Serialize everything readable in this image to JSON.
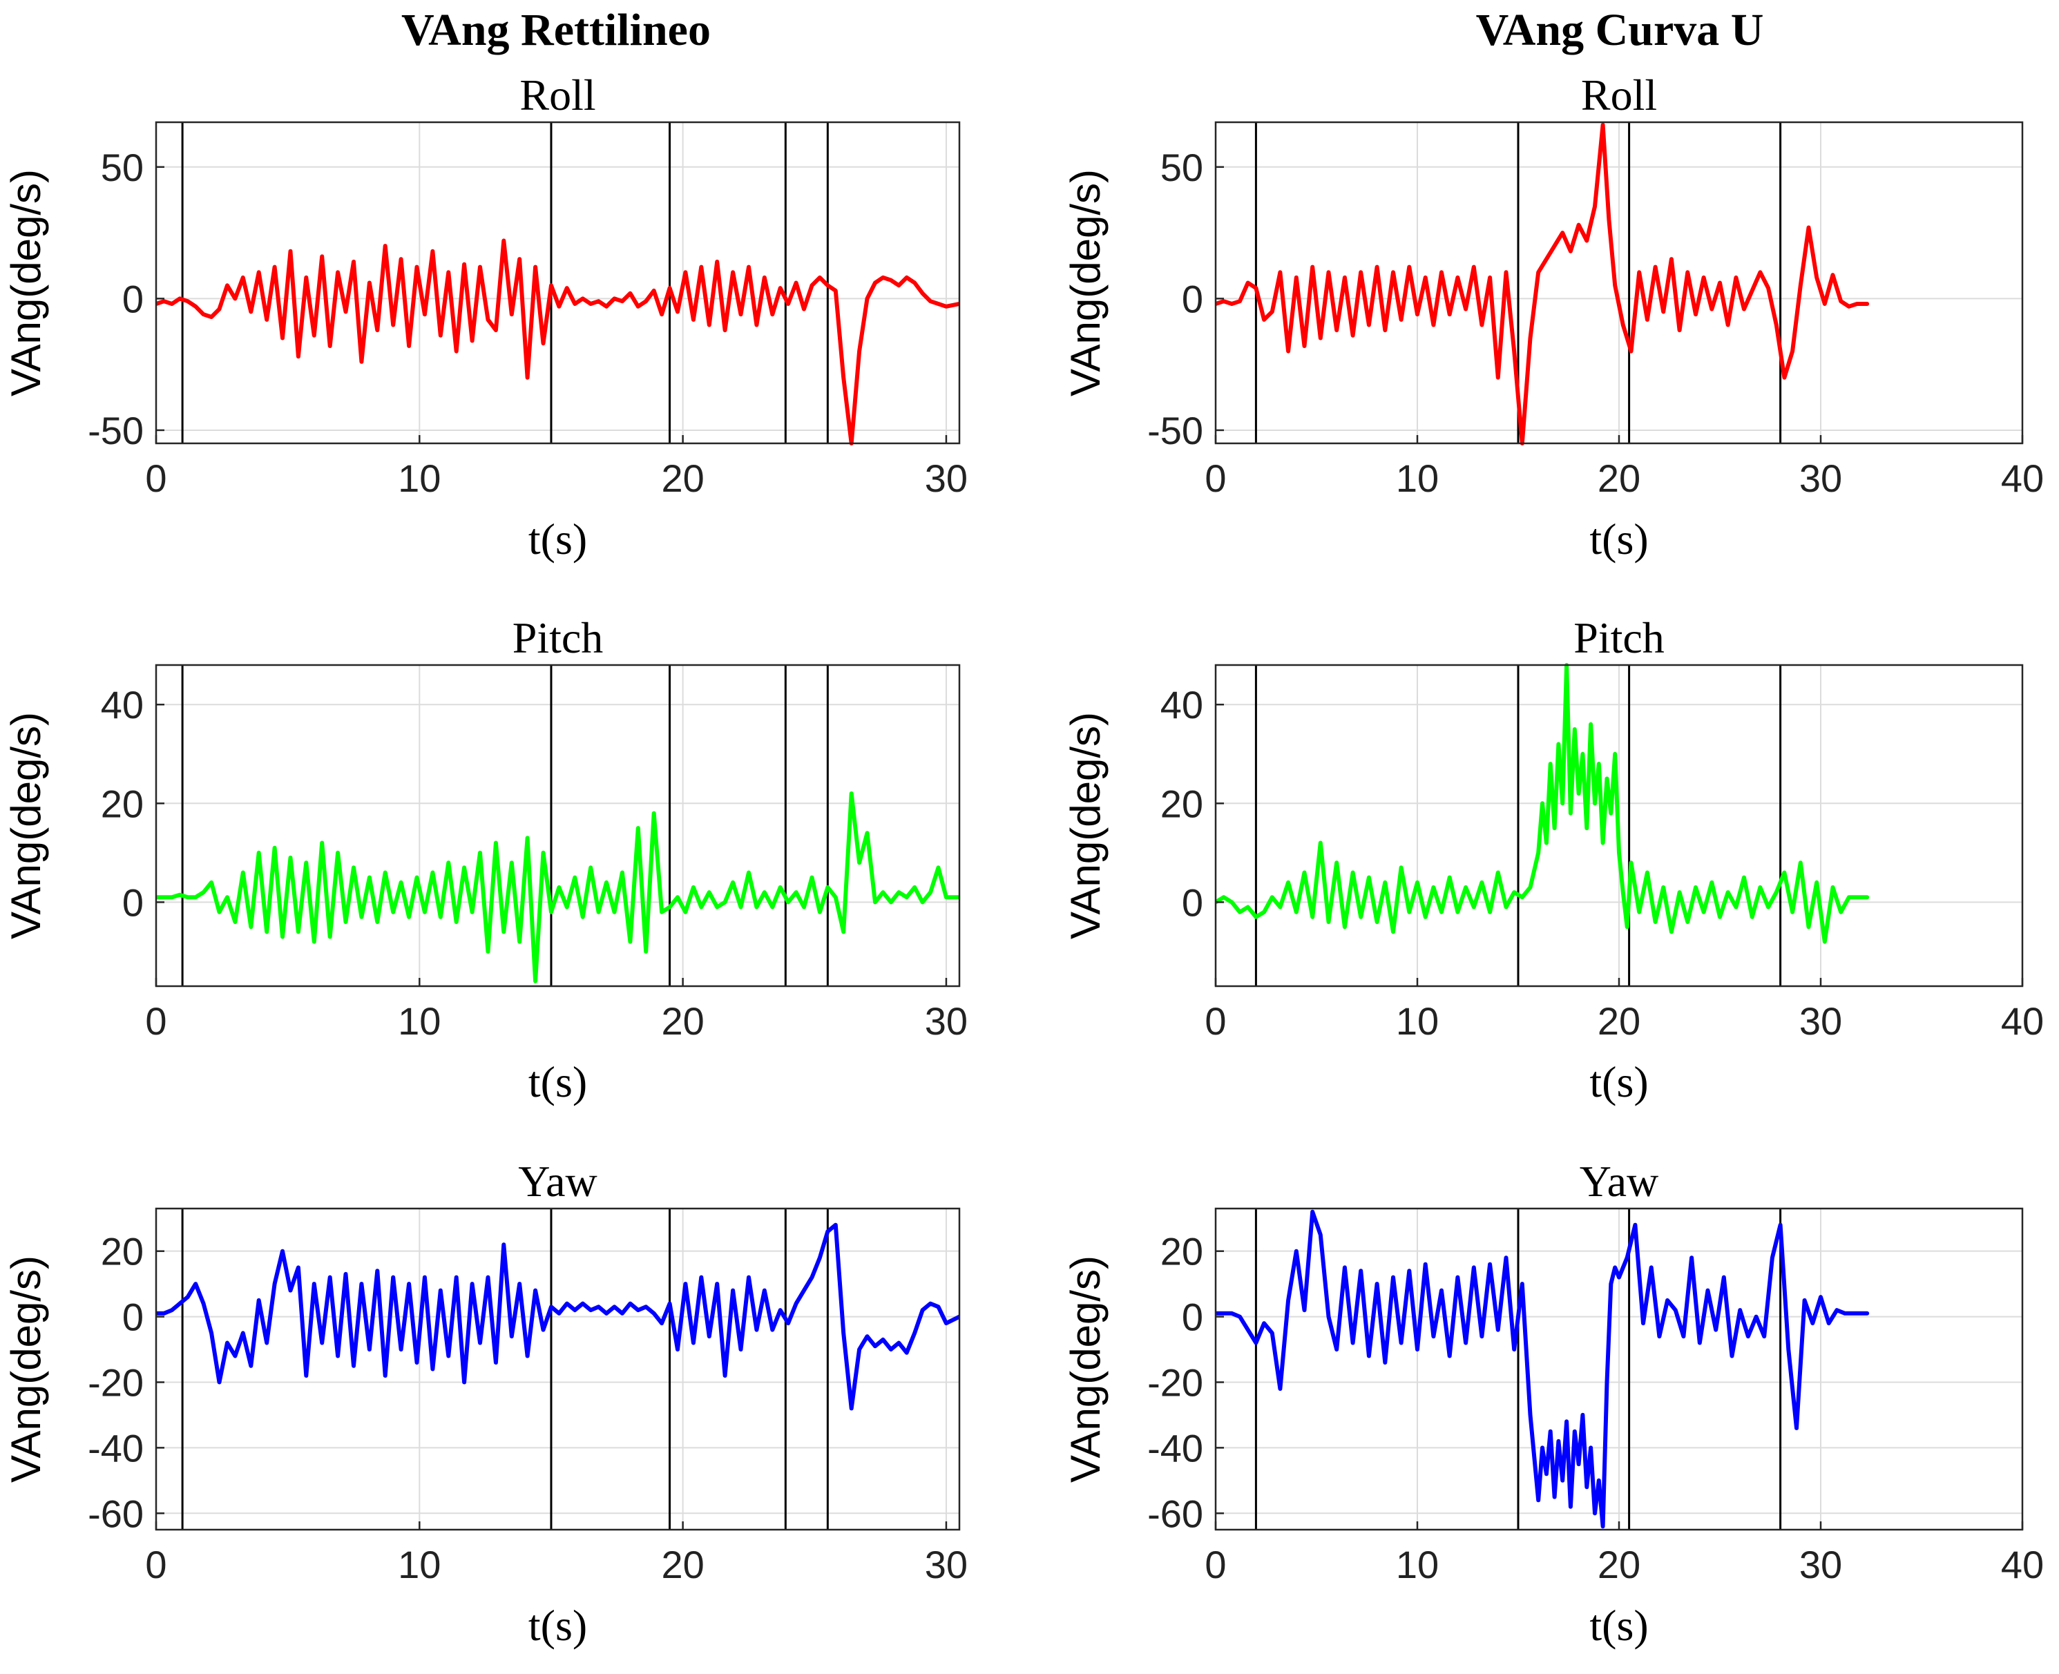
{
  "column_titles": [
    "VAng Rettilineo",
    "VAng Curva U"
  ],
  "chart_data": [
    {
      "type": "line",
      "column": 0,
      "row": 0,
      "title": "Roll",
      "xlabel": "t(s)",
      "ylabel": "VAng(deg/s)",
      "xlim": [
        0,
        30.5
      ],
      "ylim": [
        -55,
        67
      ],
      "xticks": [
        0,
        10,
        20,
        30
      ],
      "yticks": [
        -50,
        0,
        50
      ],
      "grid": true,
      "color": "#ff0000",
      "event_lines": [
        1.0,
        15.0,
        19.5,
        23.9,
        25.5
      ],
      "x": [
        0,
        0.3,
        0.6,
        0.9,
        1.2,
        1.5,
        1.8,
        2.1,
        2.4,
        2.7,
        3.0,
        3.3,
        3.6,
        3.9,
        4.2,
        4.5,
        4.8,
        5.1,
        5.4,
        5.7,
        6.0,
        6.3,
        6.6,
        6.9,
        7.2,
        7.5,
        7.8,
        8.1,
        8.4,
        8.7,
        9.0,
        9.3,
        9.6,
        9.9,
        10.2,
        10.5,
        10.8,
        11.1,
        11.4,
        11.7,
        12.0,
        12.3,
        12.6,
        12.9,
        13.2,
        13.5,
        13.8,
        14.1,
        14.4,
        14.7,
        15.0,
        15.3,
        15.6,
        15.9,
        16.2,
        16.5,
        16.8,
        17.1,
        17.4,
        17.7,
        18.0,
        18.3,
        18.6,
        18.9,
        19.2,
        19.5,
        19.8,
        20.1,
        20.4,
        20.7,
        21.0,
        21.3,
        21.6,
        21.9,
        22.2,
        22.5,
        22.8,
        23.1,
        23.4,
        23.7,
        24.0,
        24.3,
        24.6,
        24.9,
        25.2,
        25.5,
        25.8,
        26.1,
        26.4,
        26.7,
        27.0,
        27.3,
        27.6,
        27.9,
        28.2,
        28.5,
        28.8,
        29.1,
        29.4,
        29.7,
        30.0,
        30.5
      ],
      "y": [
        -2,
        -1,
        -2,
        0,
        -1,
        -3,
        -6,
        -7,
        -4,
        5,
        0,
        8,
        -5,
        10,
        -8,
        12,
        -15,
        18,
        -22,
        8,
        -14,
        16,
        -18,
        10,
        -5,
        14,
        -24,
        6,
        -12,
        20,
        -10,
        15,
        -18,
        12,
        -6,
        18,
        -14,
        10,
        -20,
        13,
        -16,
        12,
        -8,
        -12,
        22,
        -6,
        15,
        -30,
        12,
        -17,
        5,
        -3,
        4,
        -2,
        0,
        -2,
        -1,
        -3,
        0,
        -1,
        2,
        -3,
        -1,
        3,
        -6,
        4,
        -5,
        10,
        -8,
        12,
        -10,
        14,
        -12,
        10,
        -6,
        12,
        -10,
        8,
        -6,
        4,
        -2,
        6,
        -4,
        5,
        8,
        5,
        3,
        -30,
        -55,
        -20,
        0,
        6,
        8,
        7,
        5,
        8,
        6,
        2,
        -1,
        -2,
        -3,
        -2
      ]
    },
    {
      "type": "line",
      "column": 0,
      "row": 1,
      "title": "Pitch",
      "xlabel": "t(s)",
      "ylabel": "VAng(deg/s)",
      "xlim": [
        0,
        30.5
      ],
      "ylim": [
        -17,
        48
      ],
      "xticks": [
        0,
        10,
        20,
        30
      ],
      "yticks": [
        0,
        20,
        40
      ],
      "grid": true,
      "color": "#00ff00",
      "event_lines": [
        1.0,
        15.0,
        19.5,
        23.9,
        25.5
      ],
      "x": [
        0,
        0.3,
        0.6,
        0.9,
        1.2,
        1.5,
        1.8,
        2.1,
        2.4,
        2.7,
        3.0,
        3.3,
        3.6,
        3.9,
        4.2,
        4.5,
        4.8,
        5.1,
        5.4,
        5.7,
        6.0,
        6.3,
        6.6,
        6.9,
        7.2,
        7.5,
        7.8,
        8.1,
        8.4,
        8.7,
        9.0,
        9.3,
        9.6,
        9.9,
        10.2,
        10.5,
        10.8,
        11.1,
        11.4,
        11.7,
        12.0,
        12.3,
        12.6,
        12.9,
        13.2,
        13.5,
        13.8,
        14.1,
        14.4,
        14.7,
        15.0,
        15.3,
        15.6,
        15.9,
        16.2,
        16.5,
        16.8,
        17.1,
        17.4,
        17.7,
        18.0,
        18.3,
        18.6,
        18.9,
        19.2,
        19.5,
        19.8,
        20.1,
        20.4,
        20.7,
        21.0,
        21.3,
        21.6,
        21.9,
        22.2,
        22.5,
        22.8,
        23.1,
        23.4,
        23.7,
        24.0,
        24.3,
        24.6,
        24.9,
        25.2,
        25.5,
        25.8,
        26.1,
        26.4,
        26.7,
        27.0,
        27.3,
        27.6,
        27.9,
        28.2,
        28.5,
        28.8,
        29.1,
        29.4,
        29.7,
        30.0,
        30.5
      ],
      "y": [
        1,
        1,
        1,
        1.5,
        1,
        1,
        2,
        4,
        -2,
        1,
        -4,
        6,
        -5,
        10,
        -6,
        11,
        -7,
        9,
        -6,
        8,
        -8,
        12,
        -7,
        10,
        -4,
        7,
        -3,
        5,
        -4,
        6,
        -2,
        4,
        -3,
        5,
        -2,
        6,
        -3,
        8,
        -4,
        7,
        -2,
        10,
        -10,
        12,
        -6,
        8,
        -8,
        13,
        -16,
        10,
        -2,
        3,
        -1,
        5,
        -3,
        7,
        -2,
        4,
        -2,
        6,
        -8,
        15,
        -10,
        18,
        -2,
        -1,
        1,
        -2,
        3,
        -1,
        2,
        -1,
        0,
        4,
        -1,
        6,
        -1,
        2,
        -1,
        3,
        0,
        2,
        -1,
        5,
        -2,
        3,
        1,
        -6,
        22,
        8,
        14,
        0,
        2,
        0,
        2,
        1,
        3,
        0,
        2,
        7,
        1,
        1
      ]
    },
    {
      "type": "line",
      "column": 0,
      "row": 2,
      "title": "Yaw",
      "xlabel": "t(s)",
      "ylabel": "VAng(deg/s)",
      "xlim": [
        0,
        30.5
      ],
      "ylim": [
        -65,
        33
      ],
      "xticks": [
        0,
        10,
        20,
        30
      ],
      "yticks": [
        -60,
        -40,
        -20,
        0,
        20
      ],
      "grid": true,
      "color": "#0000ff",
      "event_lines": [
        1.0,
        15.0,
        19.5,
        23.9,
        25.5
      ],
      "x": [
        0,
        0.3,
        0.6,
        0.9,
        1.2,
        1.5,
        1.8,
        2.1,
        2.4,
        2.7,
        3.0,
        3.3,
        3.6,
        3.9,
        4.2,
        4.5,
        4.8,
        5.1,
        5.4,
        5.7,
        6.0,
        6.3,
        6.6,
        6.9,
        7.2,
        7.5,
        7.8,
        8.1,
        8.4,
        8.7,
        9.0,
        9.3,
        9.6,
        9.9,
        10.2,
        10.5,
        10.8,
        11.1,
        11.4,
        11.7,
        12.0,
        12.3,
        12.6,
        12.9,
        13.2,
        13.5,
        13.8,
        14.1,
        14.4,
        14.7,
        15.0,
        15.3,
        15.6,
        15.9,
        16.2,
        16.5,
        16.8,
        17.1,
        17.4,
        17.7,
        18.0,
        18.3,
        18.6,
        18.9,
        19.2,
        19.5,
        19.8,
        20.1,
        20.4,
        20.7,
        21.0,
        21.3,
        21.6,
        21.9,
        22.2,
        22.5,
        22.8,
        23.1,
        23.4,
        23.7,
        24.0,
        24.3,
        24.6,
        24.9,
        25.2,
        25.5,
        25.8,
        26.1,
        26.4,
        26.7,
        27.0,
        27.3,
        27.6,
        27.9,
        28.2,
        28.5,
        28.8,
        29.1,
        29.4,
        29.7,
        30.0,
        30.5
      ],
      "y": [
        1,
        1,
        2,
        4,
        6,
        10,
        4,
        -5,
        -20,
        -8,
        -12,
        -5,
        -15,
        5,
        -8,
        10,
        20,
        8,
        15,
        -18,
        10,
        -8,
        12,
        -12,
        13,
        -15,
        10,
        -10,
        14,
        -18,
        12,
        -10,
        10,
        -14,
        12,
        -16,
        8,
        -12,
        12,
        -20,
        10,
        -8,
        12,
        -14,
        22,
        -6,
        10,
        -12,
        8,
        -4,
        3,
        1,
        4,
        2,
        4,
        2,
        3,
        1,
        3,
        1,
        4,
        2,
        3,
        1,
        -2,
        4,
        -10,
        10,
        -8,
        12,
        -6,
        10,
        -18,
        8,
        -10,
        12,
        -4,
        8,
        -4,
        2,
        -2,
        4,
        8,
        12,
        18,
        26,
        28,
        -5,
        -28,
        -10,
        -6,
        -9,
        -7,
        -10,
        -8,
        -11,
        -5,
        2,
        4,
        3,
        -2,
        0
      ]
    },
    {
      "type": "line",
      "column": 1,
      "row": 0,
      "title": "Roll",
      "xlabel": "t(s)",
      "ylabel": "VAng(deg/s)",
      "xlim": [
        0,
        40
      ],
      "ylim": [
        -55,
        67
      ],
      "xticks": [
        0,
        10,
        20,
        30,
        40
      ],
      "yticks": [
        -50,
        0,
        50
      ],
      "grid": true,
      "color": "#ff0000",
      "event_lines": [
        2.0,
        15.0,
        20.5,
        28.0
      ],
      "x": [
        0,
        0.4,
        0.8,
        1.2,
        1.6,
        2.0,
        2.4,
        2.8,
        3.2,
        3.6,
        4.0,
        4.4,
        4.8,
        5.2,
        5.6,
        6.0,
        6.4,
        6.8,
        7.2,
        7.6,
        8.0,
        8.4,
        8.8,
        9.2,
        9.6,
        10.0,
        10.4,
        10.8,
        11.2,
        11.6,
        12.0,
        12.4,
        12.8,
        13.2,
        13.6,
        14.0,
        14.4,
        14.8,
        15.2,
        15.6,
        16.0,
        16.4,
        16.8,
        17.2,
        17.6,
        18.0,
        18.4,
        18.8,
        19.2,
        19.5,
        19.8,
        20.2,
        20.6,
        21.0,
        21.4,
        21.8,
        22.2,
        22.6,
        23.0,
        23.4,
        23.8,
        24.2,
        24.6,
        25.0,
        25.4,
        25.8,
        26.2,
        26.6,
        27.0,
        27.4,
        27.8,
        28.2,
        28.6,
        29.0,
        29.4,
        29.8,
        30.2,
        30.6,
        31.0,
        31.4,
        31.8,
        32.3
      ],
      "y": [
        -2,
        -1,
        -2,
        -1,
        6,
        4,
        -8,
        -5,
        10,
        -20,
        8,
        -18,
        12,
        -15,
        10,
        -12,
        8,
        -14,
        10,
        -10,
        12,
        -12,
        10,
        -8,
        12,
        -6,
        8,
        -10,
        10,
        -6,
        8,
        -4,
        12,
        -10,
        8,
        -30,
        10,
        -20,
        -55,
        -15,
        10,
        15,
        20,
        25,
        18,
        28,
        22,
        35,
        66,
        30,
        5,
        -10,
        -20,
        10,
        -8,
        12,
        -5,
        15,
        -12,
        10,
        -6,
        8,
        -4,
        6,
        -10,
        8,
        -4,
        3,
        10,
        4,
        -10,
        -30,
        -20,
        5,
        27,
        8,
        -2,
        9,
        -1,
        -3,
        -2,
        -2
      ]
    },
    {
      "type": "line",
      "column": 1,
      "row": 1,
      "title": "Pitch",
      "xlabel": "t(s)",
      "ylabel": "VAng(deg/s)",
      "xlim": [
        0,
        40
      ],
      "ylim": [
        -17,
        48
      ],
      "xticks": [
        0,
        10,
        20,
        30,
        40
      ],
      "yticks": [
        0,
        20,
        40
      ],
      "grid": true,
      "color": "#00ff00",
      "event_lines": [
        2.0,
        15.0,
        20.5,
        28.0
      ],
      "x": [
        0,
        0.4,
        0.8,
        1.2,
        1.6,
        2.0,
        2.4,
        2.8,
        3.2,
        3.6,
        4.0,
        4.4,
        4.8,
        5.2,
        5.6,
        6.0,
        6.4,
        6.8,
        7.2,
        7.6,
        8.0,
        8.4,
        8.8,
        9.2,
        9.6,
        10.0,
        10.4,
        10.8,
        11.2,
        11.6,
        12.0,
        12.4,
        12.8,
        13.2,
        13.6,
        14.0,
        14.4,
        14.8,
        15.2,
        15.6,
        16.0,
        16.2,
        16.4,
        16.6,
        16.8,
        17.0,
        17.2,
        17.4,
        17.6,
        17.8,
        18.0,
        18.2,
        18.4,
        18.6,
        18.8,
        19.0,
        19.2,
        19.4,
        19.6,
        19.8,
        20.0,
        20.2,
        20.4,
        20.6,
        21.0,
        21.4,
        21.8,
        22.2,
        22.6,
        23.0,
        23.4,
        23.8,
        24.2,
        24.6,
        25.0,
        25.4,
        25.8,
        26.2,
        26.6,
        27.0,
        27.4,
        27.8,
        28.2,
        28.6,
        29.0,
        29.4,
        29.8,
        30.2,
        30.6,
        31.0,
        31.4,
        31.8,
        32.3
      ],
      "y": [
        0,
        1,
        0,
        -2,
        -1,
        -3,
        -2,
        1,
        -1,
        4,
        -2,
        6,
        -3,
        12,
        -4,
        8,
        -5,
        6,
        -3,
        5,
        -4,
        4,
        -6,
        7,
        -2,
        4,
        -3,
        3,
        -2,
        5,
        -2,
        3,
        -1,
        4,
        -2,
        6,
        -1,
        2,
        1,
        3,
        10,
        20,
        12,
        28,
        15,
        32,
        20,
        48,
        18,
        35,
        22,
        30,
        15,
        36,
        20,
        28,
        12,
        25,
        18,
        30,
        10,
        2,
        -5,
        8,
        -2,
        6,
        -4,
        3,
        -6,
        2,
        -4,
        3,
        -2,
        4,
        -3,
        2,
        -1,
        5,
        -3,
        3,
        -1,
        2,
        6,
        -2,
        8,
        -5,
        4,
        -8,
        3,
        -2,
        1,
        1,
        1
      ]
    },
    {
      "type": "line",
      "column": 1,
      "row": 2,
      "title": "Yaw",
      "xlabel": "t(s)",
      "ylabel": "VAng(deg/s)",
      "xlim": [
        0,
        40
      ],
      "ylim": [
        -65,
        33
      ],
      "xticks": [
        0,
        10,
        20,
        30,
        40
      ],
      "yticks": [
        -60,
        -40,
        -20,
        0,
        20
      ],
      "grid": true,
      "color": "#0000ff",
      "event_lines": [
        2.0,
        15.0,
        20.5,
        28.0
      ],
      "x": [
        0,
        0.4,
        0.8,
        1.2,
        1.6,
        2.0,
        2.4,
        2.8,
        3.2,
        3.6,
        4.0,
        4.4,
        4.8,
        5.2,
        5.6,
        6.0,
        6.4,
        6.8,
        7.2,
        7.6,
        8.0,
        8.4,
        8.8,
        9.2,
        9.6,
        10.0,
        10.4,
        10.8,
        11.2,
        11.6,
        12.0,
        12.4,
        12.8,
        13.2,
        13.6,
        14.0,
        14.4,
        14.8,
        15.2,
        15.6,
        16.0,
        16.2,
        16.4,
        16.6,
        16.8,
        17.0,
        17.2,
        17.4,
        17.6,
        17.8,
        18.0,
        18.2,
        18.4,
        18.6,
        18.8,
        19.0,
        19.2,
        19.4,
        19.6,
        19.8,
        20.0,
        20.4,
        20.8,
        21.2,
        21.6,
        22.0,
        22.4,
        22.8,
        23.2,
        23.6,
        24.0,
        24.4,
        24.8,
        25.2,
        25.6,
        26.0,
        26.4,
        26.8,
        27.2,
        27.6,
        28.0,
        28.4,
        28.8,
        29.2,
        29.6,
        30.0,
        30.4,
        30.8,
        31.2,
        31.6,
        32.0,
        32.3
      ],
      "y": [
        1,
        1,
        1,
        0,
        -4,
        -8,
        -2,
        -5,
        -22,
        5,
        20,
        2,
        32,
        25,
        0,
        -10,
        15,
        -8,
        14,
        -12,
        10,
        -14,
        12,
        -8,
        14,
        -10,
        16,
        -6,
        8,
        -12,
        12,
        -8,
        15,
        -6,
        16,
        -4,
        18,
        -10,
        10,
        -30,
        -56,
        -40,
        -48,
        -35,
        -55,
        -38,
        -50,
        -32,
        -58,
        -35,
        -45,
        -30,
        -52,
        -40,
        -60,
        -50,
        -64,
        -20,
        10,
        15,
        12,
        18,
        28,
        -2,
        15,
        -6,
        5,
        2,
        -6,
        18,
        -8,
        8,
        -4,
        12,
        -12,
        2,
        -6,
        0,
        -6,
        18,
        28,
        -10,
        -34,
        5,
        -2,
        6,
        -2,
        2,
        1,
        1,
        1,
        1
      ]
    }
  ]
}
